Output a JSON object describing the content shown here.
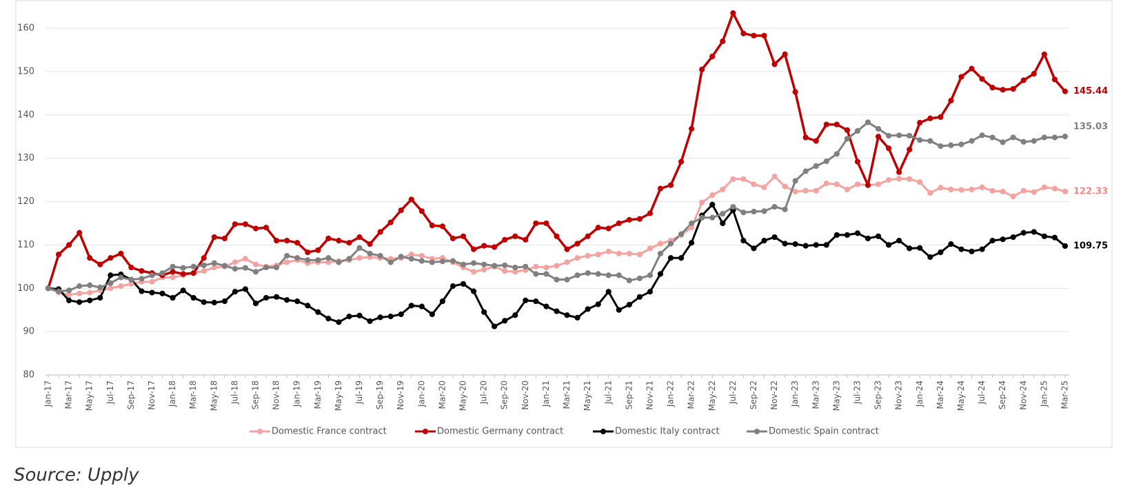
{
  "chart_data": {
    "type": "line",
    "source": "Source: Upply",
    "categories": [
      "Jan-17",
      null,
      "Mar-17",
      null,
      "May-17",
      null,
      "Jul-17",
      null,
      "Sep-17",
      null,
      "Nov-17",
      null,
      "Jan-18",
      null,
      "Mar-18",
      null,
      "May-18",
      null,
      "Jul-18",
      null,
      "Sep-18",
      null,
      "Nov-18",
      null,
      "Jan-19",
      null,
      "Mar-19",
      null,
      "May-19",
      null,
      "Jul-19",
      null,
      "Sep-19",
      null,
      "Nov-19",
      null,
      "Jan-20",
      null,
      "Mar-20",
      null,
      "May-20",
      null,
      "Jul-20",
      null,
      "Sep-20",
      null,
      "Nov-20",
      null,
      "Jan-21",
      null,
      "Mar-21",
      null,
      "May-21",
      null,
      "Jul-21",
      null,
      "Sep-21",
      null,
      "Nov-21",
      null,
      "Jan-22",
      null,
      "Mar-22",
      null,
      "May-22",
      null,
      "Jul-22",
      null,
      "Sep-22",
      null,
      "Nov-22",
      null,
      "Jan-23",
      null,
      "Mar-23",
      null,
      "May-23",
      null,
      "Jul-23",
      null,
      "Sep-23",
      null,
      "Nov-23",
      null,
      "Jan-24",
      null,
      "Mar-24",
      null,
      "May-24",
      null,
      "Jul-24",
      null,
      "Sep-24",
      null,
      "Nov-24",
      null,
      "Jan-25",
      null,
      "Mar-25"
    ],
    "series": [
      {
        "name": "Domestic France contract",
        "color": "#f4a3a0",
        "values": [
          100,
          99,
          98.5,
          98.8,
          99,
          99.5,
          100,
          100.5,
          101,
          101.5,
          101.5,
          102.5,
          102.5,
          103,
          103.5,
          104,
          104.8,
          105,
          106,
          106.8,
          105.5,
          105,
          105.3,
          106,
          106.5,
          105.8,
          106,
          106,
          106.3,
          106.5,
          107,
          107.2,
          107,
          106.8,
          107,
          107.8,
          107.5,
          106.8,
          107,
          106,
          104.8,
          103.8,
          104.3,
          105,
          104,
          103.8,
          104.2,
          105,
          104.8,
          105.2,
          106,
          107,
          107.5,
          107.8,
          108.5,
          108,
          108,
          107.8,
          109.2,
          110.3,
          111,
          112.3,
          114,
          119.8,
          121.5,
          122.8,
          125.2,
          125.2,
          124,
          123.3,
          125.8,
          123.5,
          122.3,
          122.5,
          122.5,
          124.2,
          124,
          122.8,
          124,
          123.8,
          124,
          125,
          125.3,
          125.2,
          124.5,
          122,
          123.2,
          122.8,
          122.7,
          122.8,
          123.3,
          122.5,
          122.3,
          121.2,
          122.5,
          122.2,
          123.3,
          123,
          122.33
        ]
      },
      {
        "name": "Domestic Germany contract",
        "color": "#c00000",
        "values": [
          100,
          107.8,
          110,
          112.8,
          107,
          105.5,
          107,
          108,
          104.8,
          104,
          103.5,
          103,
          103.8,
          103.3,
          103.5,
          107,
          111.8,
          111.5,
          114.8,
          114.8,
          113.8,
          114,
          111,
          111,
          110.5,
          108.3,
          108.8,
          111.5,
          111,
          110.5,
          111.8,
          110.2,
          113,
          115.2,
          118,
          120.5,
          117.8,
          114.5,
          114.3,
          111.5,
          112,
          109,
          109.8,
          109.5,
          111.2,
          112,
          111.2,
          115,
          115,
          112,
          109,
          110.3,
          112,
          114,
          113.8,
          115,
          115.8,
          116,
          117.3,
          123,
          123.8,
          129.2,
          136.8,
          150.5,
          153.5,
          157,
          163.5,
          158.8,
          158.3,
          158.3,
          151.7,
          154,
          145.3,
          134.8,
          134,
          137.8,
          137.8,
          136.5,
          129.2,
          123.8,
          135,
          132.3,
          126.8,
          132,
          138.2,
          139.2,
          139.5,
          143.3,
          148.8,
          150.7,
          148.3,
          146.3,
          145.8,
          146,
          148,
          149.5,
          154,
          148.2,
          145.44
        ]
      },
      {
        "name": "Domestic Italy contract",
        "color": "#000000",
        "values": [
          100,
          99.8,
          97.2,
          96.8,
          97.2,
          97.8,
          103,
          103.2,
          102,
          99.3,
          99,
          98.8,
          97.8,
          99.5,
          97.8,
          96.8,
          96.7,
          97,
          99.2,
          99.8,
          96.5,
          97.8,
          98,
          97.3,
          97,
          96,
          94.5,
          93,
          92.2,
          93.5,
          93.7,
          92.4,
          93.3,
          93.5,
          94,
          96,
          95.8,
          94,
          97,
          100.5,
          101,
          99.3,
          94.5,
          91.2,
          92.5,
          93.8,
          97.2,
          97,
          95.8,
          94.7,
          93.8,
          93.2,
          95.2,
          96.3,
          99.2,
          95,
          96.2,
          98,
          99.2,
          103.3,
          107,
          107,
          110.5,
          116.8,
          119.3,
          115,
          118,
          111,
          109.2,
          111,
          111.8,
          110.3,
          110.2,
          109.8,
          110,
          110,
          112.3,
          112.3,
          112.7,
          111.5,
          112,
          110,
          111,
          109.2,
          109.3,
          107.2,
          108.3,
          110.2,
          109,
          108.5,
          109,
          111,
          111.3,
          111.8,
          112.8,
          113,
          112,
          111.7,
          109.75
        ]
      },
      {
        "name": "Domestic Spain contract",
        "color": "#808080",
        "values": [
          100,
          99.3,
          99.5,
          100.5,
          100.7,
          100.2,
          101.2,
          102.5,
          102,
          102.2,
          103,
          103.5,
          105,
          104.7,
          105,
          105.3,
          105.8,
          105.2,
          104.5,
          104.7,
          103.8,
          104.8,
          104.8,
          107.5,
          107,
          106.5,
          106.5,
          107,
          106,
          106.8,
          109.3,
          108,
          107.5,
          106,
          107.3,
          106.8,
          106.3,
          106,
          106.2,
          106.3,
          105.5,
          105.8,
          105.5,
          105.2,
          105.3,
          104.8,
          105,
          103.3,
          103.3,
          102,
          102,
          103,
          103.5,
          103.3,
          103,
          103,
          101.8,
          102.3,
          103,
          108,
          110.3,
          112.5,
          115,
          116.3,
          116.3,
          117.2,
          118.8,
          117.5,
          117.7,
          117.8,
          118.8,
          118.2,
          124.8,
          127,
          128.2,
          129.3,
          131,
          134.5,
          136.3,
          138.3,
          136.8,
          135.2,
          135.3,
          135.2,
          134.2,
          134,
          132.8,
          133,
          133.2,
          134,
          135.3,
          134.8,
          133.7,
          134.8,
          133.8,
          134,
          134.8,
          134.8,
          135.03
        ]
      }
    ],
    "ylim": [
      80,
      160
    ],
    "yticks": [
      80,
      90,
      100,
      110,
      120,
      130,
      140,
      150,
      160
    ],
    "grid": true,
    "legend": "bottom"
  }
}
